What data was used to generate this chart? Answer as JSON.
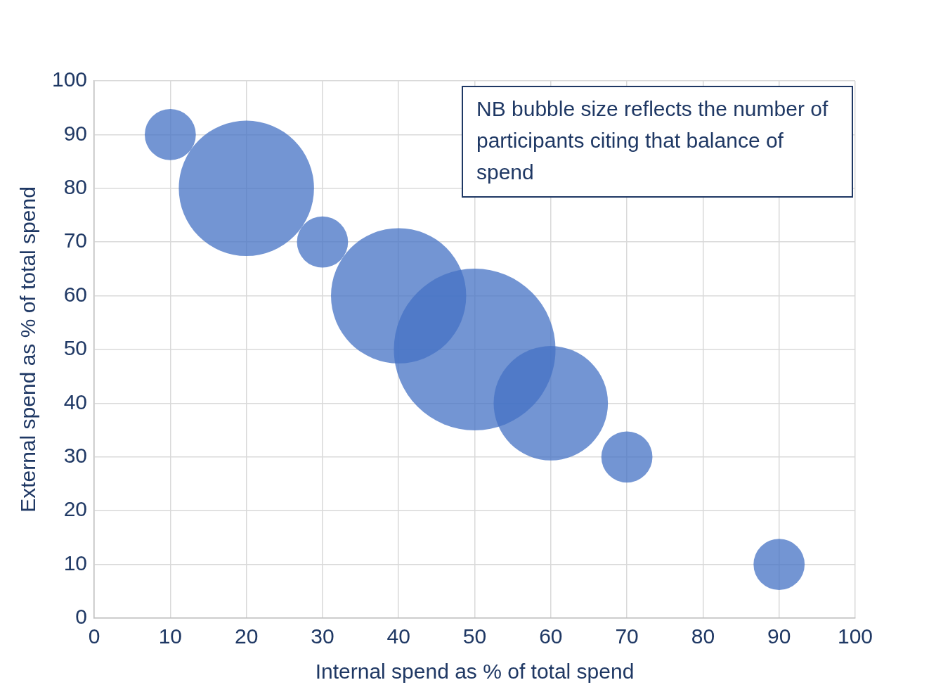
{
  "chart_data": {
    "type": "bubble",
    "xlabel": "Internal spend as % of total spend",
    "ylabel": "External spend as % of total spend",
    "annotations": [
      "NB bubble size reflects the number of participants citing that balance of spend"
    ],
    "x": [
      10,
      20,
      30,
      40,
      50,
      60,
      70,
      90
    ],
    "series": [
      {
        "color": "#4472c4",
        "values": [
          90,
          80,
          70,
          60,
          50,
          40,
          30,
          10
        ],
        "sizes": [
          0.1,
          0.7,
          0.1,
          0.7,
          1,
          0.5,
          0.1,
          0.1
        ]
      }
    ],
    "xlim": [
      0,
      100
    ],
    "xticks": [
      0,
      10,
      20,
      30,
      40,
      50,
      60,
      70,
      80,
      90,
      100
    ],
    "ylim": [
      0,
      100
    ],
    "yticks": [
      0,
      10,
      20,
      30,
      40,
      50,
      60,
      70,
      80,
      90,
      100
    ],
    "grid": true,
    "legend": false
  }
}
